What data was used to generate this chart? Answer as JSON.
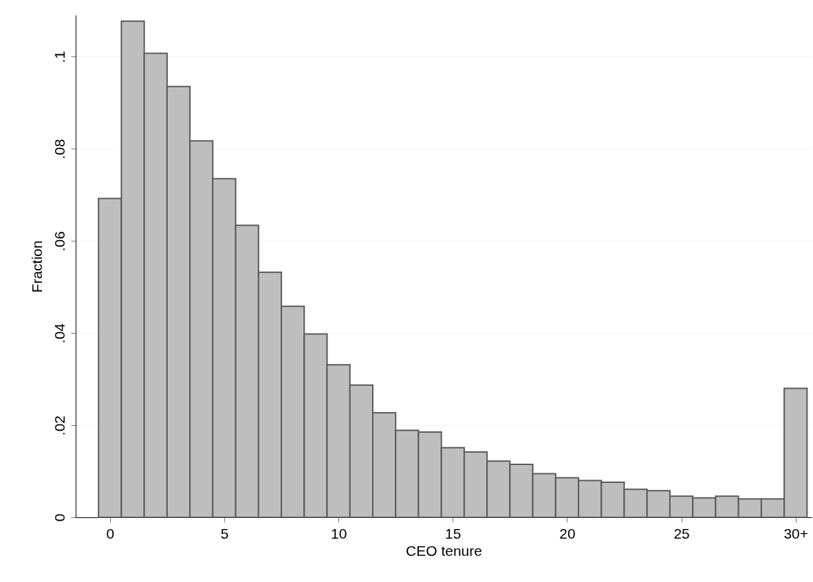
{
  "chart_data": {
    "type": "histogram",
    "xlabel": "CEO tenure",
    "ylabel": "Fraction",
    "color": "#bebebe",
    "grid": "y",
    "bins": [
      -0.5,
      0.5,
      1.5,
      2.5,
      3.5,
      4.5,
      5.5,
      6.5,
      7.5,
      8.5,
      9.5,
      10.5,
      11.5,
      12.5,
      13.5,
      14.5,
      15.5,
      16.5,
      17.5,
      18.5,
      19.5,
      20.5,
      21.5,
      22.5,
      23.5,
      24.5,
      25.5,
      26.5,
      27.5,
      28.5,
      29.5,
      30.5
    ],
    "values": [
      0.0692,
      0.1077,
      0.1007,
      0.0935,
      0.0817,
      0.0735,
      0.0634,
      0.0532,
      0.0458,
      0.0398,
      0.0331,
      0.0287,
      0.0227,
      0.0189,
      0.0185,
      0.0151,
      0.0142,
      0.0122,
      0.0115,
      0.0095,
      0.0086,
      0.008,
      0.0076,
      0.0061,
      0.0058,
      0.0046,
      0.0042,
      0.0046,
      0.004,
      0.004,
      0.028
    ],
    "xlim": [
      -1.5,
      30.7
    ],
    "xticks": [
      0,
      5,
      10,
      15,
      20,
      25,
      {
        "value": 30,
        "label": "30+"
      }
    ],
    "ylim": [
      0,
      0.109
    ],
    "yticks": [
      0,
      {
        "value": 0.02,
        "label": ".02"
      },
      {
        "value": 0.04,
        "label": ".04"
      },
      {
        "value": 0.06,
        "label": ".06"
      },
      {
        "value": 0.08,
        "label": ".08"
      },
      {
        "value": 0.1,
        "label": ".1"
      }
    ]
  }
}
